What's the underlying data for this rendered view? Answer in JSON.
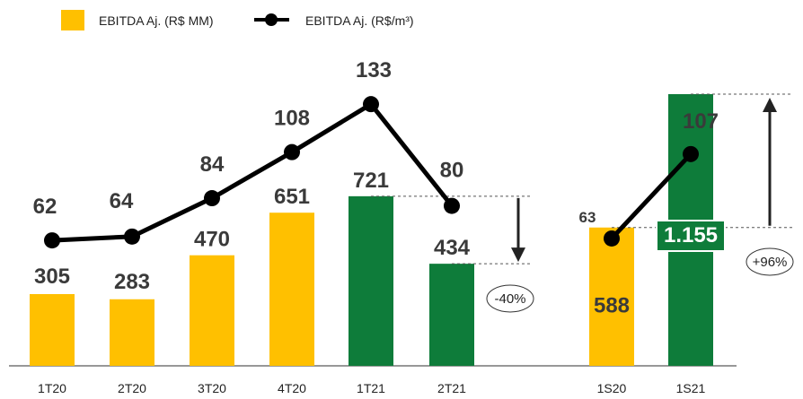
{
  "chart_data": {
    "type": "bar",
    "categories": [
      "1T20",
      "2T20",
      "3T20",
      "4T20",
      "1T21",
      "2T21",
      "1S20",
      "1S21"
    ],
    "series": [
      {
        "name": "EBITDA Aj. (R$ MM)",
        "kind": "bar",
        "values": [
          305,
          283,
          470,
          651,
          721,
          434,
          588,
          1155
        ],
        "value_labels": [
          "305",
          "283",
          "470",
          "651",
          "721",
          "434",
          "588",
          "1.155"
        ],
        "bar_colors": [
          "#FFC000",
          "#FFC000",
          "#FFC000",
          "#FFC000",
          "#0E7C3A",
          "#0E7C3A",
          "#FFC000",
          "#0E7C3A"
        ]
      },
      {
        "name": "EBITDA Aj. (R$/m³)",
        "kind": "line",
        "segments": [
          [
            0,
            1,
            2,
            3,
            4,
            5
          ],
          [
            6,
            7
          ]
        ],
        "values": [
          62,
          64,
          84,
          108,
          133,
          80,
          63,
          107
        ],
        "value_labels": [
          "62",
          "64",
          "84",
          "108",
          "133",
          "80",
          "63",
          "107"
        ],
        "color": "#000000"
      }
    ],
    "annotations": [
      {
        "text": "-40%",
        "from": "1T21",
        "to": "2T21",
        "direction": "down"
      },
      {
        "text": "+96%",
        "from": "1S20",
        "to": "1S21",
        "direction": "up"
      }
    ],
    "legend_position": "top-left",
    "grid": false,
    "title": "",
    "xlabel": "",
    "ylabel": ""
  },
  "legend": {
    "bar_label": "EBITDA Aj. (R$ MM)",
    "line_label": "EBITDA Aj. (R$/m³)"
  },
  "colors": {
    "yellow": "#FFC000",
    "green": "#0E7C3A",
    "line": "#000000",
    "text": "#3a3a3a"
  }
}
